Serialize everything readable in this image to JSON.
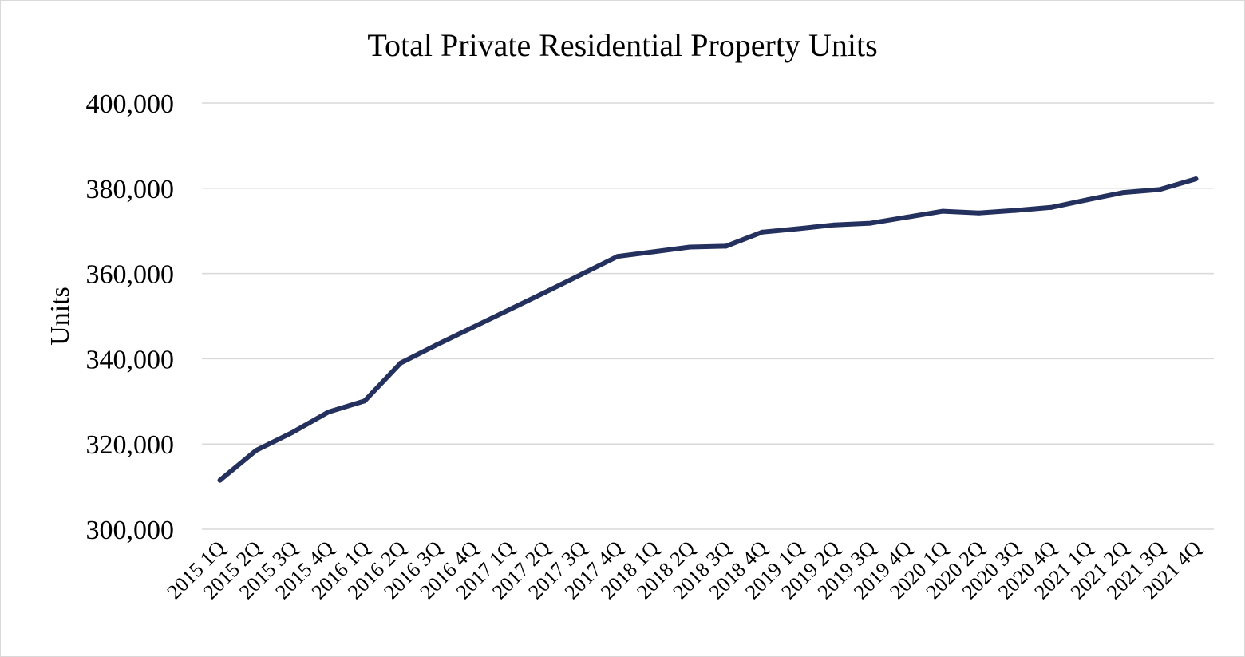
{
  "chart_data": {
    "type": "line",
    "title": "Total Private Residential Property Units",
    "xlabel": "",
    "ylabel": "Units",
    "ylim": [
      300000,
      400000
    ],
    "yticks": [
      300000,
      320000,
      340000,
      360000,
      380000,
      400000
    ],
    "ytick_labels": [
      "300,000",
      "320,000",
      "340,000",
      "360,000",
      "380,000",
      "400,000"
    ],
    "grid": true,
    "legend": "none",
    "categories": [
      "2015 1Q",
      "2015 2Q",
      "2015 3Q",
      "2015 4Q",
      "2016 1Q",
      "2016 2Q",
      "2016 3Q",
      "2016 4Q",
      "2017 1Q",
      "2017 2Q",
      "2017 3Q",
      "2017 4Q",
      "2018 1Q",
      "2018 2Q",
      "2018 3Q",
      "2018 4Q",
      "2019 1Q",
      "2019 2Q",
      "2019 3Q",
      "2019 4Q",
      "2020 1Q",
      "2020 2Q",
      "2020 3Q",
      "2020 4Q",
      "2021 1Q",
      "2021 2Q",
      "2021 3Q",
      "2021 4Q"
    ],
    "series": [
      {
        "name": "Total Private Residential Property Units",
        "color": "#24305e",
        "values": [
          311500,
          318500,
          322700,
          327500,
          330100,
          339000,
          343300,
          347400,
          351500,
          355600,
          359800,
          364000,
          365100,
          366200,
          366400,
          369700,
          370500,
          371400,
          371800,
          373200,
          374600,
          374200,
          374800,
          375500,
          377300,
          379000,
          379700,
          382200
        ]
      }
    ]
  }
}
